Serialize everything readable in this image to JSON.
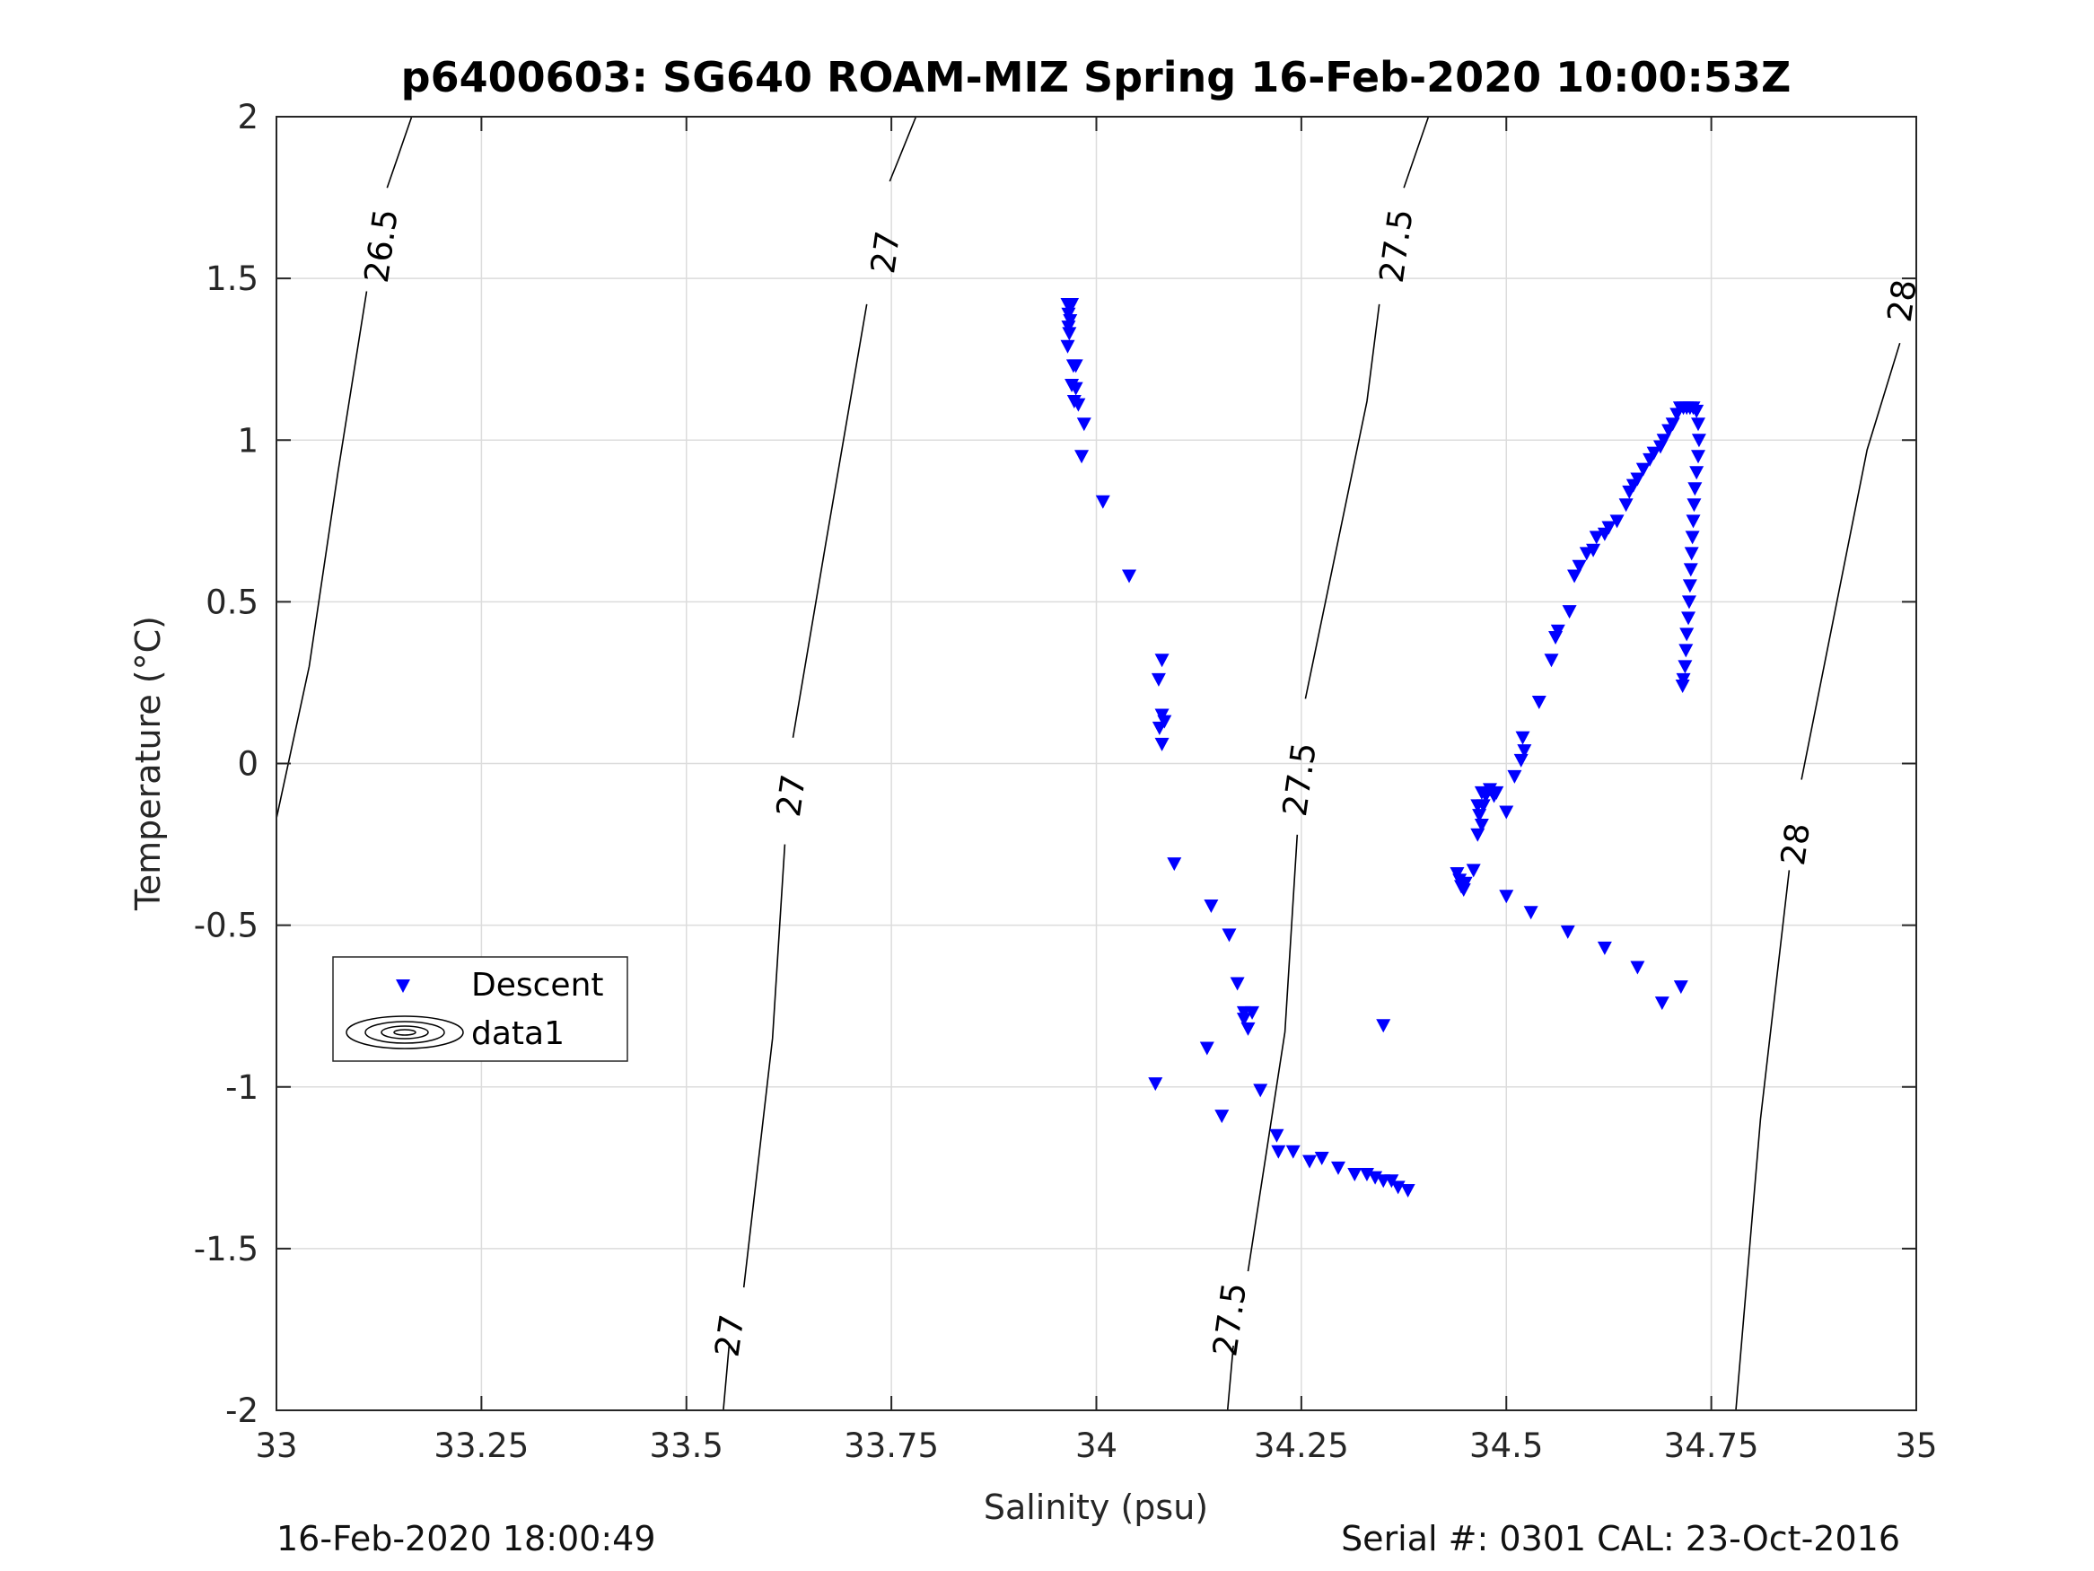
{
  "chart_data": {
    "type": "scatter",
    "title": "p6400603: SG640 ROAM-MIZ Spring 16-Feb-2020 10:00:53Z",
    "xlabel": "Salinity (psu)",
    "ylabel": "Temperature (°C)",
    "xlim": [
      33,
      35
    ],
    "ylim": [
      -2,
      2
    ],
    "xticks": [
      33,
      33.25,
      33.5,
      33.75,
      34,
      34.25,
      34.5,
      34.75,
      35
    ],
    "xtick_labels": [
      "33",
      "33.25",
      "33.5",
      "33.75",
      "34",
      "34.25",
      "34.5",
      "34.75",
      "35"
    ],
    "yticks": [
      -2,
      -1.5,
      -1,
      -0.5,
      0,
      0.5,
      1,
      1.5,
      2
    ],
    "ytick_labels": [
      "-2",
      "-1.5",
      "-1",
      "-0.5",
      "0",
      "0.5",
      "1",
      "1.5",
      "2"
    ],
    "grid": true,
    "legend_position": "middle-left",
    "legend": [
      {
        "label": "Descent",
        "marker": "triangle-down",
        "color": "#0000ff"
      },
      {
        "label": "data1",
        "marker": "contour-ellipses",
        "color": "#000000"
      }
    ],
    "series": [
      {
        "name": "Descent",
        "marker": "triangle-down",
        "color": "#0000ff",
        "points": [
          [
            33.965,
            1.42
          ],
          [
            33.968,
            1.41
          ],
          [
            33.97,
            1.42
          ],
          [
            33.966,
            1.39
          ],
          [
            33.968,
            1.37
          ],
          [
            33.966,
            1.35
          ],
          [
            33.967,
            1.33
          ],
          [
            33.965,
            1.29
          ],
          [
            33.972,
            1.23
          ],
          [
            33.975,
            1.23
          ],
          [
            33.97,
            1.17
          ],
          [
            33.975,
            1.16
          ],
          [
            33.973,
            1.12
          ],
          [
            33.978,
            1.11
          ],
          [
            33.985,
            1.05
          ],
          [
            33.982,
            0.95
          ],
          [
            34.008,
            0.81
          ],
          [
            34.04,
            0.58
          ],
          [
            34.08,
            0.32
          ],
          [
            34.076,
            0.26
          ],
          [
            34.08,
            0.15
          ],
          [
            34.083,
            0.13
          ],
          [
            34.077,
            0.11
          ],
          [
            34.08,
            0.06
          ],
          [
            34.095,
            -0.31
          ],
          [
            34.14,
            -0.44
          ],
          [
            34.162,
            -0.53
          ],
          [
            34.172,
            -0.68
          ],
          [
            34.18,
            -0.77
          ],
          [
            34.19,
            -0.77
          ],
          [
            34.18,
            -0.79
          ],
          [
            34.185,
            -0.82
          ],
          [
            34.135,
            -0.88
          ],
          [
            34.072,
            -0.99
          ],
          [
            34.2,
            -1.01
          ],
          [
            34.153,
            -1.09
          ],
          [
            34.22,
            -1.15
          ],
          [
            34.222,
            -1.2
          ],
          [
            34.24,
            -1.2
          ],
          [
            34.26,
            -1.23
          ],
          [
            34.275,
            -1.22
          ],
          [
            34.295,
            -1.25
          ],
          [
            34.315,
            -1.27
          ],
          [
            34.33,
            -1.27
          ],
          [
            34.34,
            -1.28
          ],
          [
            34.35,
            -1.29
          ],
          [
            34.36,
            -1.29
          ],
          [
            34.368,
            -1.31
          ],
          [
            34.38,
            -1.32
          ],
          [
            34.35,
            -0.81
          ],
          [
            34.44,
            -0.34
          ],
          [
            34.443,
            -0.36
          ],
          [
            34.445,
            -0.38
          ],
          [
            34.448,
            -0.39
          ],
          [
            34.45,
            -0.37
          ],
          [
            34.46,
            -0.33
          ],
          [
            34.465,
            -0.22
          ],
          [
            34.47,
            -0.19
          ],
          [
            34.467,
            -0.16
          ],
          [
            34.472,
            -0.13
          ],
          [
            34.475,
            -0.1
          ],
          [
            34.485,
            -0.1
          ],
          [
            34.488,
            -0.09
          ],
          [
            34.48,
            -0.08
          ],
          [
            34.47,
            -0.09
          ],
          [
            34.465,
            -0.13
          ],
          [
            34.5,
            -0.15
          ],
          [
            34.51,
            -0.04
          ],
          [
            34.518,
            0.01
          ],
          [
            34.522,
            0.04
          ],
          [
            34.52,
            0.08
          ],
          [
            34.54,
            0.19
          ],
          [
            34.555,
            0.32
          ],
          [
            34.56,
            0.39
          ],
          [
            34.563,
            0.41
          ],
          [
            34.577,
            0.47
          ],
          [
            34.583,
            0.58
          ],
          [
            34.589,
            0.61
          ],
          [
            34.598,
            0.65
          ],
          [
            34.606,
            0.66
          ],
          [
            34.61,
            0.7
          ],
          [
            34.62,
            0.71
          ],
          [
            34.625,
            0.73
          ],
          [
            34.635,
            0.75
          ],
          [
            34.646,
            0.8
          ],
          [
            34.65,
            0.84
          ],
          [
            34.655,
            0.86
          ],
          [
            34.66,
            0.88
          ],
          [
            34.667,
            0.91
          ],
          [
            34.675,
            0.94
          ],
          [
            34.68,
            0.96
          ],
          [
            34.688,
            0.98
          ],
          [
            34.692,
            1.0
          ],
          [
            34.698,
            1.03
          ],
          [
            34.703,
            1.05
          ],
          [
            34.708,
            1.08
          ],
          [
            34.712,
            1.1
          ],
          [
            34.716,
            1.1
          ],
          [
            34.72,
            1.1
          ],
          [
            34.724,
            1.1
          ],
          [
            34.728,
            1.1
          ],
          [
            34.732,
            1.09
          ],
          [
            34.734,
            1.05
          ],
          [
            34.735,
            1.0
          ],
          [
            34.734,
            0.95
          ],
          [
            34.732,
            0.9
          ],
          [
            34.73,
            0.85
          ],
          [
            34.729,
            0.8
          ],
          [
            34.728,
            0.75
          ],
          [
            34.727,
            0.7
          ],
          [
            34.726,
            0.65
          ],
          [
            34.725,
            0.6
          ],
          [
            34.724,
            0.55
          ],
          [
            34.723,
            0.5
          ],
          [
            34.722,
            0.45
          ],
          [
            34.72,
            0.4
          ],
          [
            34.719,
            0.35
          ],
          [
            34.718,
            0.3
          ],
          [
            34.716,
            0.26
          ],
          [
            34.715,
            0.24
          ],
          [
            34.5,
            -0.41
          ],
          [
            34.53,
            -0.46
          ],
          [
            34.575,
            -0.52
          ],
          [
            34.62,
            -0.57
          ],
          [
            34.66,
            -0.63
          ],
          [
            34.69,
            -0.74
          ],
          [
            34.713,
            -0.69
          ]
        ]
      }
    ],
    "isopycnals": [
      {
        "value": "26.5",
        "labels": [
          "26.5"
        ]
      },
      {
        "value": "27",
        "labels": [
          "27",
          "27",
          "27"
        ]
      },
      {
        "value": "27.5",
        "labels": [
          "27.5",
          "27.5",
          "27.5"
        ]
      },
      {
        "value": "28",
        "labels": [
          "28",
          "28"
        ]
      }
    ]
  },
  "footer": {
    "left_text": "16-Feb-2020 18:00:49",
    "right_text": "Serial #: 0301  CAL: 23-Oct-2016"
  }
}
